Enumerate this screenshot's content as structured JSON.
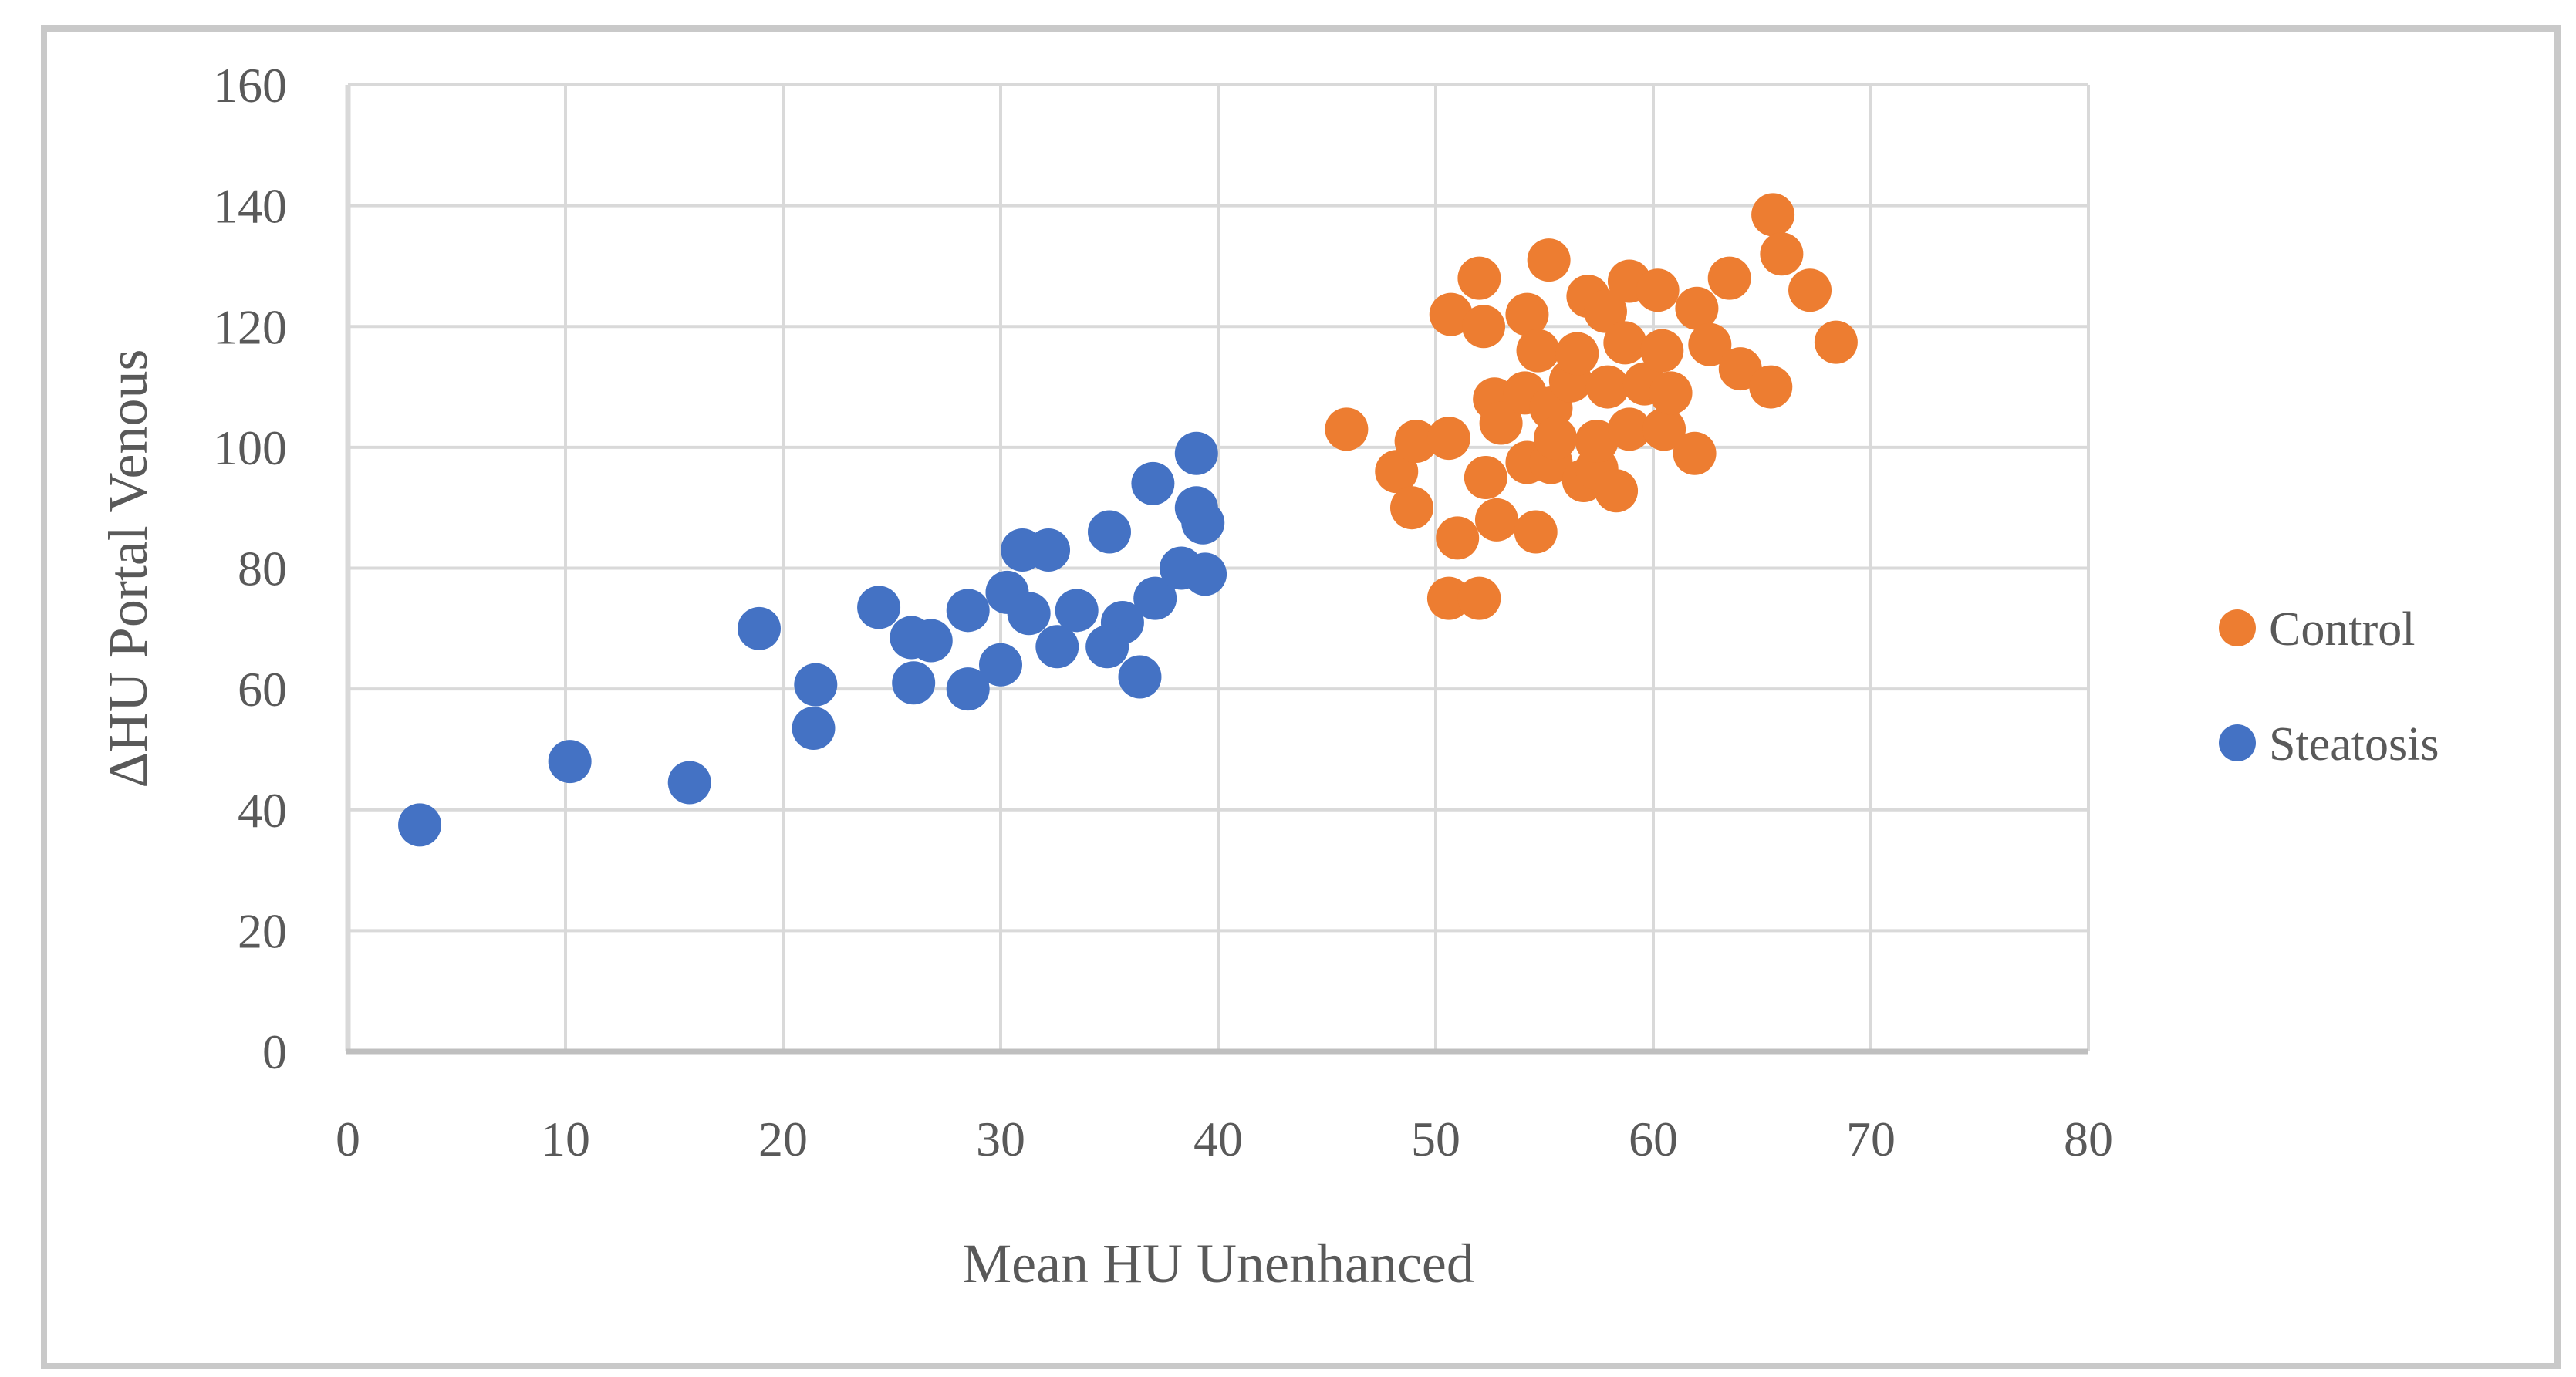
{
  "chart_data": {
    "type": "scatter",
    "title": "",
    "xlabel": "Mean HU Unenhanced",
    "ylabel": "ΔHU Portal Venous",
    "xlim": [
      0,
      80
    ],
    "ylim": [
      0,
      160
    ],
    "x_ticks": [
      0,
      10,
      20,
      30,
      40,
      50,
      60,
      70,
      80
    ],
    "y_ticks": [
      0,
      20,
      40,
      60,
      80,
      100,
      120,
      140,
      160
    ],
    "grid": true,
    "legend_position": "right",
    "marker": "circle",
    "series": [
      {
        "name": "Control",
        "color": "#ED7D31",
        "points": [
          [
            45.9,
            103
          ],
          [
            48.2,
            96
          ],
          [
            48.9,
            90
          ],
          [
            49.1,
            101
          ],
          [
            50.6,
            101.5
          ],
          [
            50.6,
            75
          ],
          [
            50.7,
            122
          ],
          [
            51,
            85
          ],
          [
            52,
            75
          ],
          [
            52,
            128
          ],
          [
            52.2,
            120
          ],
          [
            52.3,
            95
          ],
          [
            52.7,
            108
          ],
          [
            52.8,
            88
          ],
          [
            53,
            104
          ],
          [
            54.1,
            109
          ],
          [
            54.2,
            122
          ],
          [
            54.2,
            97.5
          ],
          [
            54.6,
            86
          ],
          [
            54.7,
            116
          ],
          [
            55.2,
            131
          ],
          [
            55.3,
            97.5
          ],
          [
            55.3,
            106.5
          ],
          [
            55.5,
            101.5
          ],
          [
            56.2,
            111
          ],
          [
            56.5,
            115.5
          ],
          [
            56.8,
            94.5
          ],
          [
            57,
            125
          ],
          [
            57.4,
            96.5
          ],
          [
            57.4,
            101
          ],
          [
            57.8,
            122.5
          ],
          [
            57.9,
            110
          ],
          [
            58.3,
            92.8
          ],
          [
            58.7,
            117.3
          ],
          [
            58.9,
            103
          ],
          [
            58.9,
            127.5
          ],
          [
            59.6,
            110.5
          ],
          [
            60.2,
            126
          ],
          [
            60.4,
            116
          ],
          [
            60.5,
            103
          ],
          [
            60.8,
            109
          ],
          [
            61.9,
            99
          ],
          [
            62,
            123
          ],
          [
            62.6,
            117
          ],
          [
            63.5,
            128
          ],
          [
            64,
            113
          ],
          [
            65.4,
            110
          ],
          [
            65.5,
            138.5
          ],
          [
            65.9,
            132
          ],
          [
            67.2,
            126
          ],
          [
            68.4,
            117.4
          ]
        ]
      },
      {
        "name": "Steatosis",
        "color": "#4472C4",
        "points": [
          [
            3.3,
            37.5
          ],
          [
            10.2,
            48
          ],
          [
            15.7,
            44.5
          ],
          [
            18.9,
            70
          ],
          [
            21.5,
            60.7
          ],
          [
            21.4,
            53.5
          ],
          [
            24.4,
            73.5
          ],
          [
            25.9,
            68.5
          ],
          [
            26.8,
            68
          ],
          [
            26,
            61
          ],
          [
            28.5,
            60
          ],
          [
            28.5,
            73
          ],
          [
            30,
            64
          ],
          [
            30.3,
            76
          ],
          [
            31.3,
            72.5
          ],
          [
            32.6,
            67
          ],
          [
            31,
            83
          ],
          [
            32.2,
            83
          ],
          [
            33.5,
            73
          ],
          [
            35,
            86
          ],
          [
            35.6,
            71
          ],
          [
            34.9,
            67
          ],
          [
            36.4,
            62
          ],
          [
            37.1,
            75
          ],
          [
            37,
            94
          ],
          [
            38.3,
            80
          ],
          [
            39.4,
            79
          ],
          [
            39,
            90
          ],
          [
            39.3,
            87.5
          ],
          [
            39,
            99
          ]
        ]
      }
    ]
  },
  "colors": {
    "control": "#ED7D31",
    "steatosis": "#4472C4",
    "text": "#595959",
    "gridline": "#D9D9D9",
    "axis": "#BFBFBF",
    "border": "#C9C9C9",
    "background": "#FFFFFF"
  }
}
